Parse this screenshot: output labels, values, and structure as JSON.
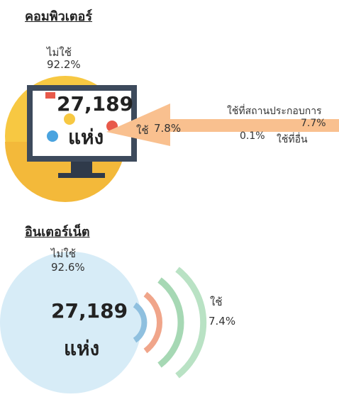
{
  "sections": [
    {
      "title": "คอมพิวเตอร์",
      "not_use": {
        "label": "ไม่ใช้",
        "value": "92.2%"
      },
      "total": {
        "number": "27,189",
        "unit": "แห่ง"
      },
      "use": {
        "label": "ใช้",
        "value": "7.8%"
      },
      "breakdown": [
        {
          "label": "ใช้ที่สถานประกอบการ",
          "value": "7.7%"
        },
        {
          "label": "ใช้ที่อื่น",
          "value": "0.1%"
        }
      ]
    },
    {
      "title": "อินเตอร์เน็ต",
      "not_use": {
        "label": "ไม่ใช้",
        "value": "92.6%"
      },
      "total": {
        "number": "27,189",
        "unit": "แห่ง"
      },
      "use": {
        "label": "ใช้",
        "value": "7.4%"
      }
    }
  ]
}
